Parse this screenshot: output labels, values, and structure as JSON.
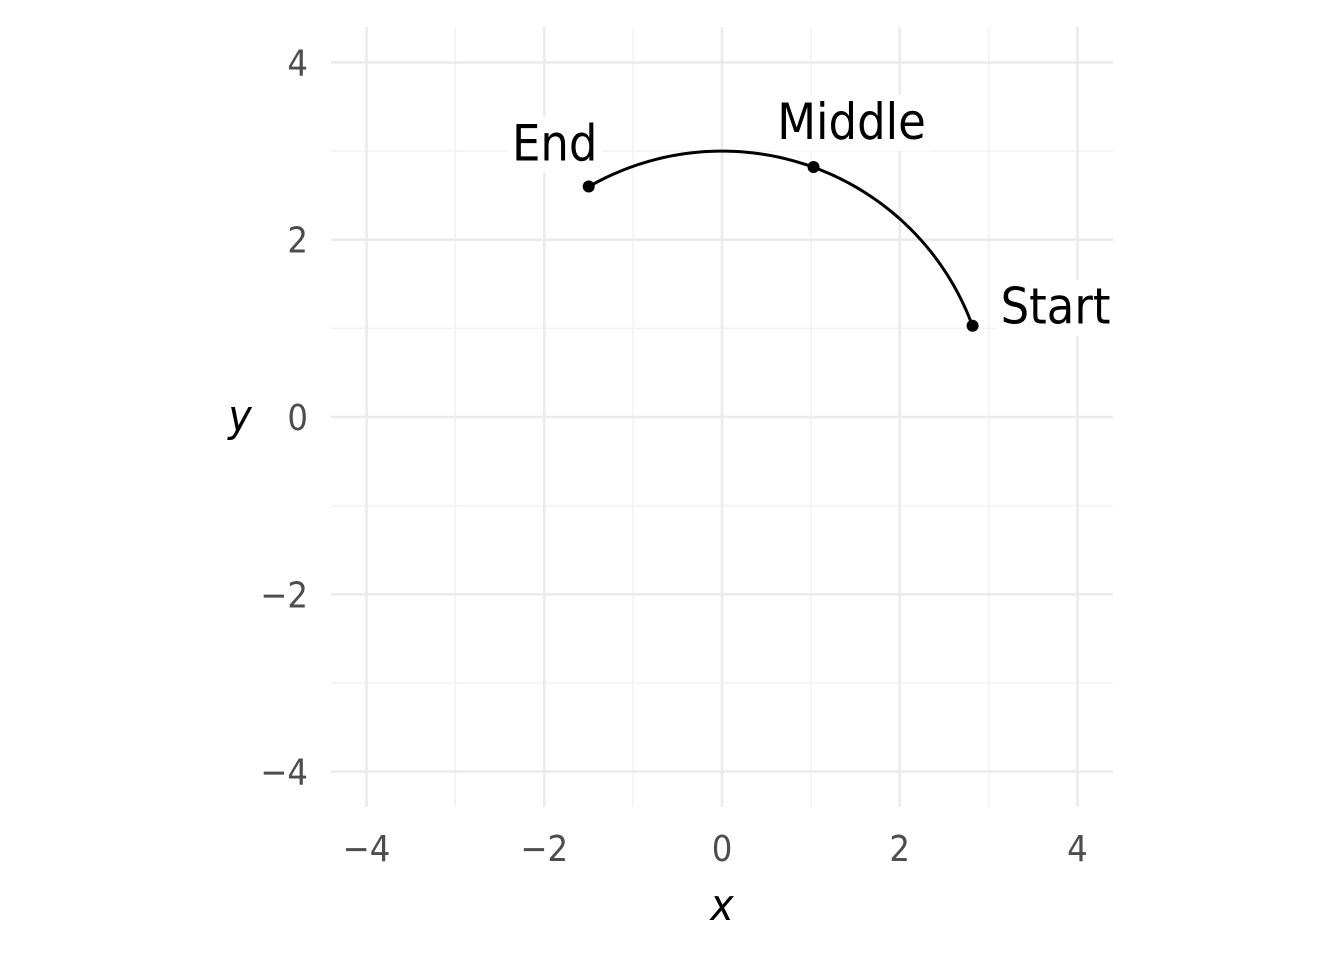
{
  "chart_data": {
    "type": "line",
    "title": "",
    "xlabel": "x",
    "ylabel": "y",
    "xlim": [
      -4.4,
      4.4
    ],
    "ylim": [
      -4.4,
      4.4
    ],
    "x_ticks": [
      -4,
      -2,
      0,
      2,
      4
    ],
    "y_ticks": [
      -4,
      -2,
      0,
      2,
      4
    ],
    "x_tick_labels": [
      "−4",
      "−2",
      "0",
      "2",
      "4"
    ],
    "y_tick_labels": [
      "−4",
      "−2",
      "0",
      "2",
      "4"
    ],
    "grid": true,
    "arc": {
      "center": [
        0,
        0
      ],
      "radius": 3,
      "start_angle_deg": 20,
      "end_angle_deg": 120
    },
    "points": [
      {
        "label": "Start",
        "x": 2.82,
        "y": 1.03
      },
      {
        "label": "Middle",
        "x": 1.03,
        "y": 2.82
      },
      {
        "label": "End",
        "x": -1.5,
        "y": 2.6
      }
    ],
    "colors": {
      "line": "#000000",
      "point": "#000000",
      "grid": "#ebebeb"
    }
  }
}
